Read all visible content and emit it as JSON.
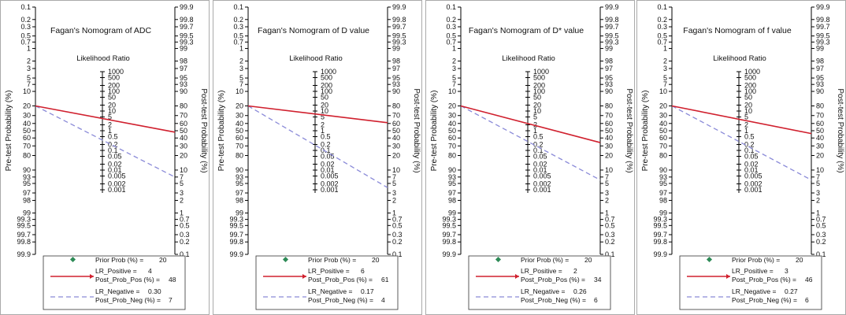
{
  "axis_labels": {
    "pre": "Pre-test Probability (%)",
    "post": "Post-test Probability (%)",
    "lr": "Likelihood Ratio"
  },
  "prob_ticks_left": [
    "0.1",
    "0.2",
    "0.3",
    "0.5",
    "0.7",
    "1",
    "2",
    "3",
    "5",
    "7",
    "10",
    "20",
    "30",
    "40",
    "50",
    "60",
    "70",
    "80",
    "90",
    "93",
    "95",
    "97",
    "98",
    "99",
    "99.3",
    "99.5",
    "99.7",
    "99.8",
    "99.9"
  ],
  "prob_ticks_right": [
    "99.9",
    "99.8",
    "99.7",
    "99.5",
    "99.3",
    "99",
    "98",
    "97",
    "95",
    "93",
    "90",
    "80",
    "70",
    "60",
    "50",
    "40",
    "30",
    "20",
    "10",
    "7",
    "5",
    "3",
    "2",
    "1",
    "0.7",
    "0.5",
    "0.3",
    "0.2",
    "0.1"
  ],
  "lr_ticks": [
    "1000",
    "500",
    "200",
    "100",
    "50",
    "20",
    "10",
    "5",
    "2",
    "1",
    "0.5",
    "0.2",
    "0.1",
    "0.05",
    "0.02",
    "0.01",
    "0.005",
    "0.002",
    "0.001"
  ],
  "legend_labels": {
    "prior": "Prior Prob (%) =",
    "lr_pos": "LR_Positive =",
    "post_pos": "Post_Prob_Pos (%) =",
    "lr_neg": "LR_Negative =",
    "post_neg": "Post_Prob_Neg (%) ="
  },
  "colors": {
    "positive": "#d0202e",
    "negative": "#8a8ad8",
    "prior": "#2e8b57",
    "axis": "#000000"
  },
  "chart_data": [
    {
      "type": "nomogram",
      "panel": "A",
      "title": "Fagan's Nomogram of ADC",
      "prior_prob": 20,
      "lr_positive": "4",
      "post_prob_pos": 48,
      "lr_negative": "0.30",
      "post_prob_neg": 7
    },
    {
      "type": "nomogram",
      "panel": "B",
      "title": "Fagan's Nomogram of D value",
      "prior_prob": 20,
      "lr_positive": "6",
      "post_prob_pos": 61,
      "lr_negative": "0.17",
      "post_prob_neg": 4
    },
    {
      "type": "nomogram",
      "panel": "C",
      "title": "Fagan's Nomogram of D* value",
      "prior_prob": 20,
      "lr_positive": "2",
      "post_prob_pos": 34,
      "lr_negative": "0.26",
      "post_prob_neg": 6
    },
    {
      "type": "nomogram",
      "panel": "D",
      "title": "Fagan's Nomogram of f value",
      "prior_prob": 20,
      "lr_positive": "3",
      "post_prob_pos": 46,
      "lr_negative": "0.27",
      "post_prob_neg": 6
    }
  ]
}
